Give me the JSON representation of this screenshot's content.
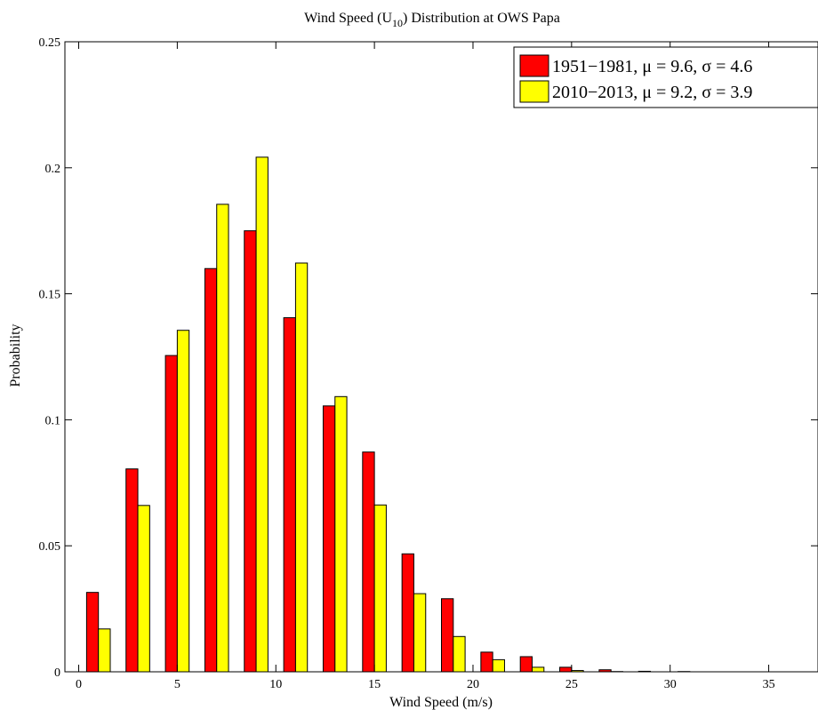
{
  "chart_data": {
    "type": "bar",
    "title_main": "Wind Speed (U",
    "title_sub": "10",
    "title_rest": ") Distribution at OWS Papa",
    "xlabel": "Wind Speed (m/s)",
    "ylabel": "Probability",
    "xlim": [
      -0.7,
      37.5
    ],
    "ylim": [
      0,
      0.25
    ],
    "xticks": [
      0,
      5,
      10,
      15,
      20,
      25,
      30,
      35
    ],
    "xtick_labels": [
      "0",
      "5",
      "10",
      "15",
      "20",
      "25",
      "30",
      "35"
    ],
    "yticks": [
      0,
      0.05,
      0.1,
      0.15,
      0.2,
      0.25
    ],
    "ytick_labels": [
      "0",
      "0.05",
      "0.1",
      "0.15",
      "0.2",
      "0.25"
    ],
    "bin_centers": [
      1,
      3,
      5,
      7,
      9,
      11,
      13,
      15,
      17,
      19,
      21,
      23,
      25,
      27,
      29,
      31,
      33,
      35
    ],
    "bar_width": 0.6,
    "grid": false,
    "legend_position": "top-right",
    "series": [
      {
        "name": "1951−1981, μ = 9.6, σ = 4.6",
        "color": "#ff0000",
        "values": [
          0.0315,
          0.0805,
          0.1255,
          0.16,
          0.175,
          0.1405,
          0.1055,
          0.0872,
          0.0468,
          0.029,
          0.0078,
          0.006,
          0.0018,
          0.0008,
          0.0002,
          0.0001,
          0,
          0
        ]
      },
      {
        "name": "2010−2013, μ = 9.2, σ = 3.9",
        "color": "#ffff00",
        "values": [
          0.017,
          0.066,
          0.1355,
          0.1855,
          0.2042,
          0.1622,
          0.1092,
          0.0662,
          0.031,
          0.014,
          0.0048,
          0.0018,
          0.0005,
          0.0001,
          0,
          0,
          0,
          0
        ]
      }
    ]
  }
}
